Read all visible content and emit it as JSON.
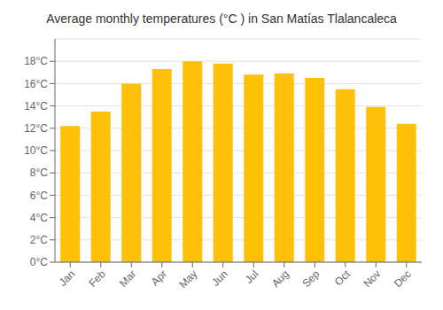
{
  "chart_data": {
    "type": "bar",
    "title": "Average monthly temperatures (°C ) in San Matías Tlalancaleca",
    "categories": [
      "Jan",
      "Feb",
      "Mar",
      "Apr",
      "May",
      "Jun",
      "Jul",
      "Aug",
      "Sep",
      "Oct",
      "Nov",
      "Dec"
    ],
    "values": [
      12.2,
      13.5,
      16.0,
      17.3,
      18.0,
      17.8,
      16.8,
      16.9,
      16.5,
      15.5,
      13.9,
      12.4
    ],
    "color": "#FFC107",
    "ylim": [
      0,
      20
    ],
    "yticks": [
      {
        "value": 0,
        "label": "0°C"
      },
      {
        "value": 2,
        "label": "2°C"
      },
      {
        "value": 4,
        "label": "4°C"
      },
      {
        "value": 6,
        "label": "6°C"
      },
      {
        "value": 8,
        "label": "8°C"
      },
      {
        "value": 10,
        "label": "10°C"
      },
      {
        "value": 12,
        "label": "12°C"
      },
      {
        "value": 14,
        "label": "14°C"
      },
      {
        "value": 16,
        "label": "16°C"
      },
      {
        "value": 18,
        "label": "18°C"
      }
    ],
    "grid": true
  }
}
